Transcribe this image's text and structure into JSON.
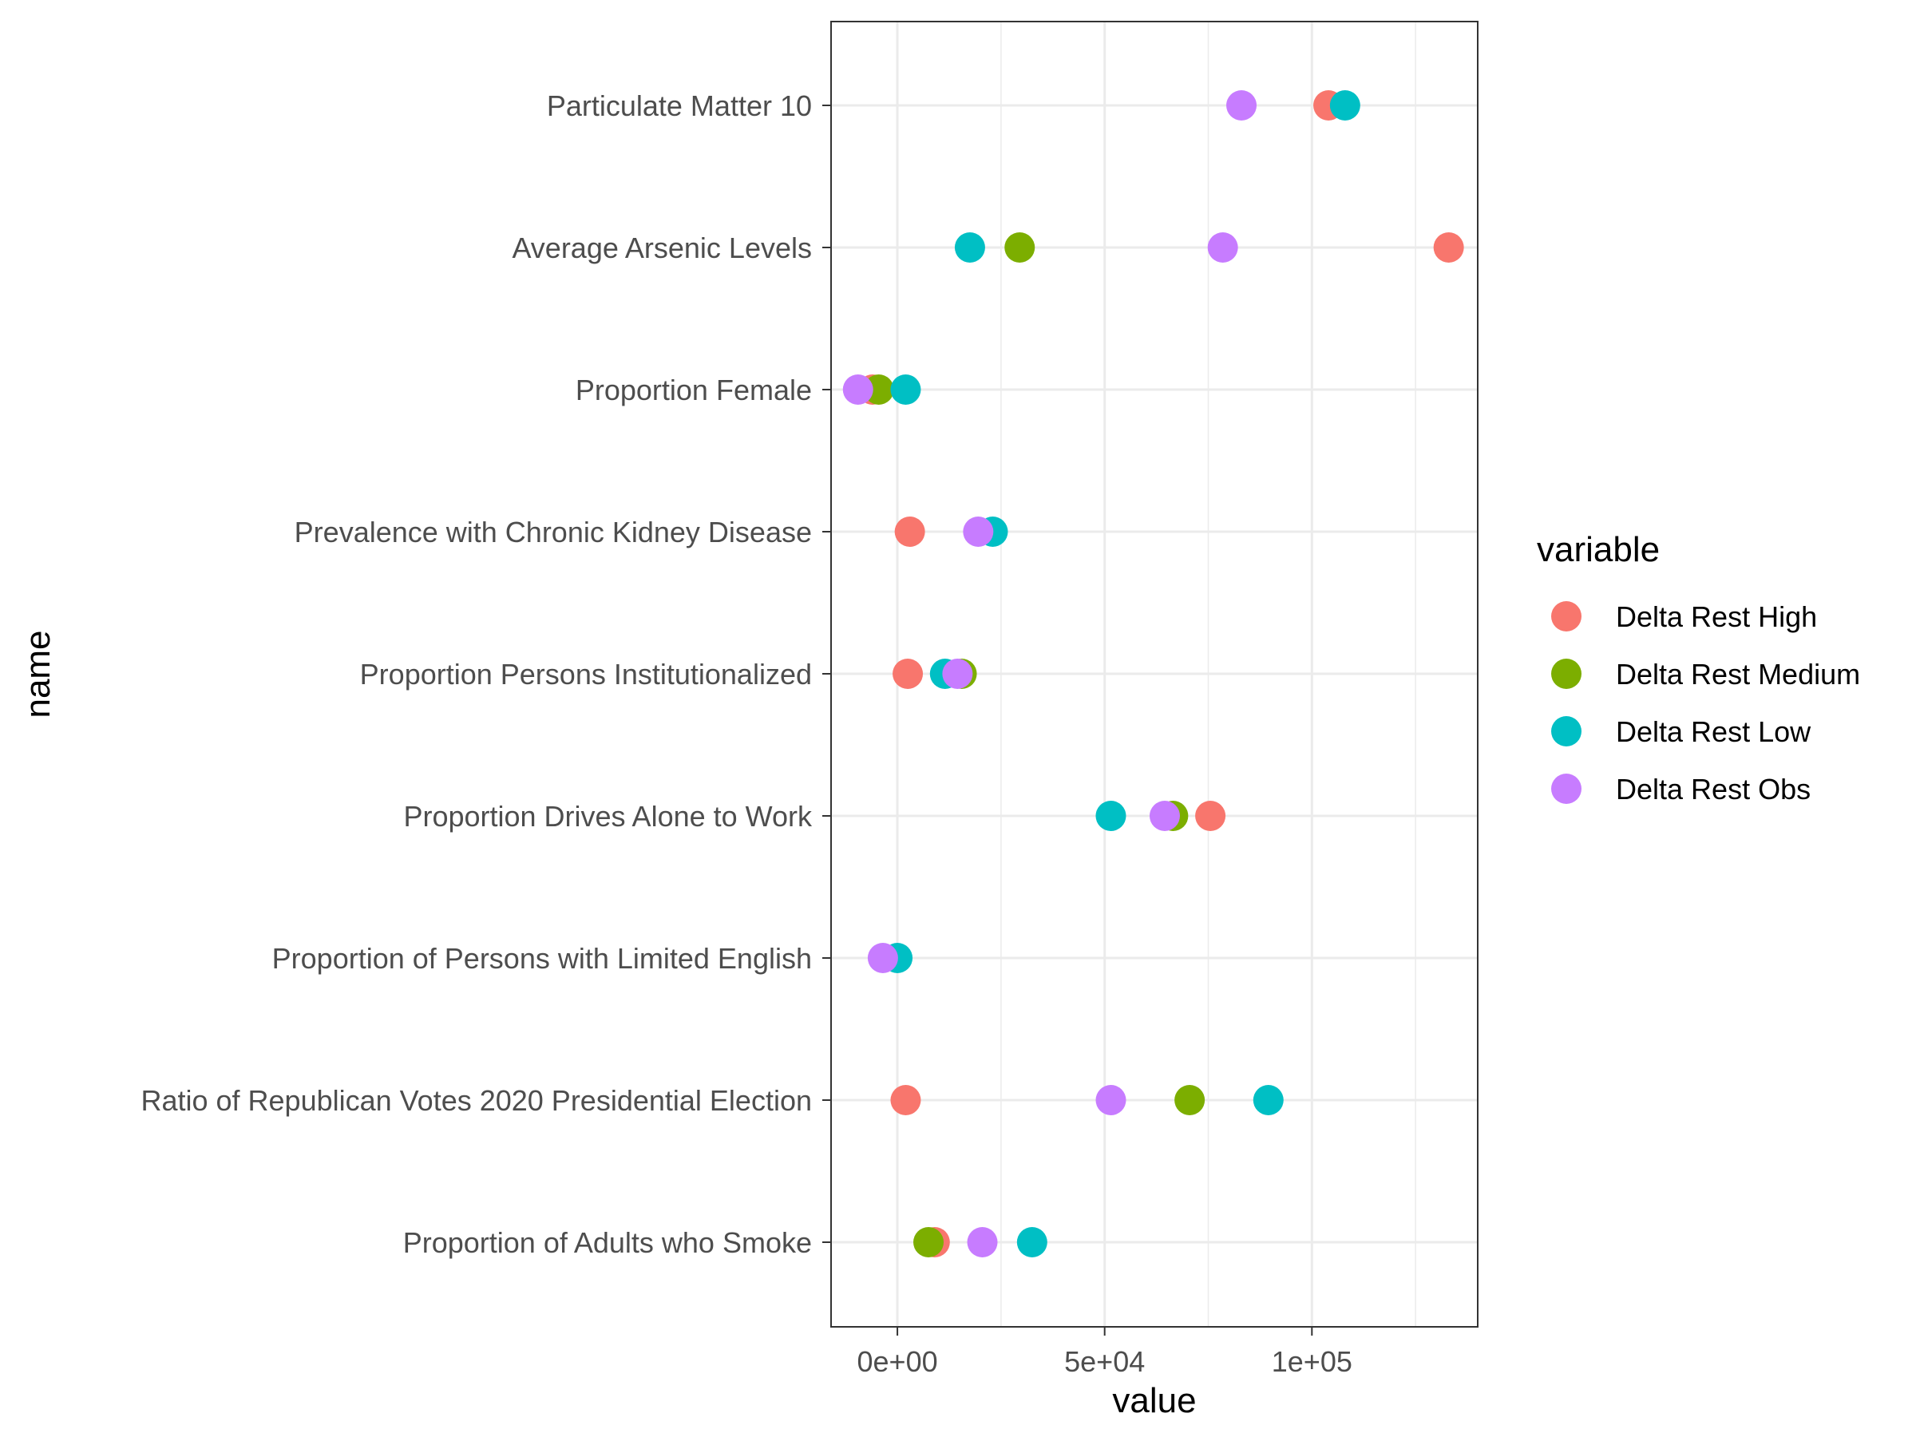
{
  "chart_data": {
    "type": "scatter",
    "title": "",
    "xlabel": "value",
    "ylabel": "name",
    "xlim": [
      -16000,
      140000
    ],
    "xticks": [
      0,
      50000,
      100000
    ],
    "xtick_labels": [
      "0e+00",
      "5e+04",
      "1e+05"
    ],
    "categories": [
      "Particulate Matter 10",
      "Average Arsenic Levels",
      "Proportion Female",
      "Prevalence with Chronic Kidney Disease",
      "Proportion Persons Institutionalized",
      "Proportion Drives Alone to Work",
      "Proportion of Persons with Limited English",
      "Ratio of Republican Votes 2020 Presidential Election",
      "Proportion of Adults who Smoke"
    ],
    "grid": true,
    "legend": {
      "title": "variable",
      "placement": "right"
    },
    "series": [
      {
        "name": "Delta Rest High",
        "color": "#F8766D",
        "values": [
          104000,
          133000,
          -6000,
          3000,
          2500,
          75500,
          null,
          2000,
          9000
        ]
      },
      {
        "name": "Delta Rest Medium",
        "color": "#7CAE00",
        "values": [
          null,
          29500,
          -4500,
          null,
          15500,
          66500,
          null,
          70500,
          7500
        ]
      },
      {
        "name": "Delta Rest Low",
        "color": "#00BFC4",
        "values": [
          108000,
          17500,
          2000,
          23000,
          11500,
          51500,
          0,
          89500,
          32500
        ]
      },
      {
        "name": "Delta Rest Obs",
        "color": "#C77CFF",
        "values": [
          83000,
          78500,
          -9500,
          19500,
          14500,
          64500,
          -3500,
          51500,
          20500
        ]
      }
    ]
  }
}
